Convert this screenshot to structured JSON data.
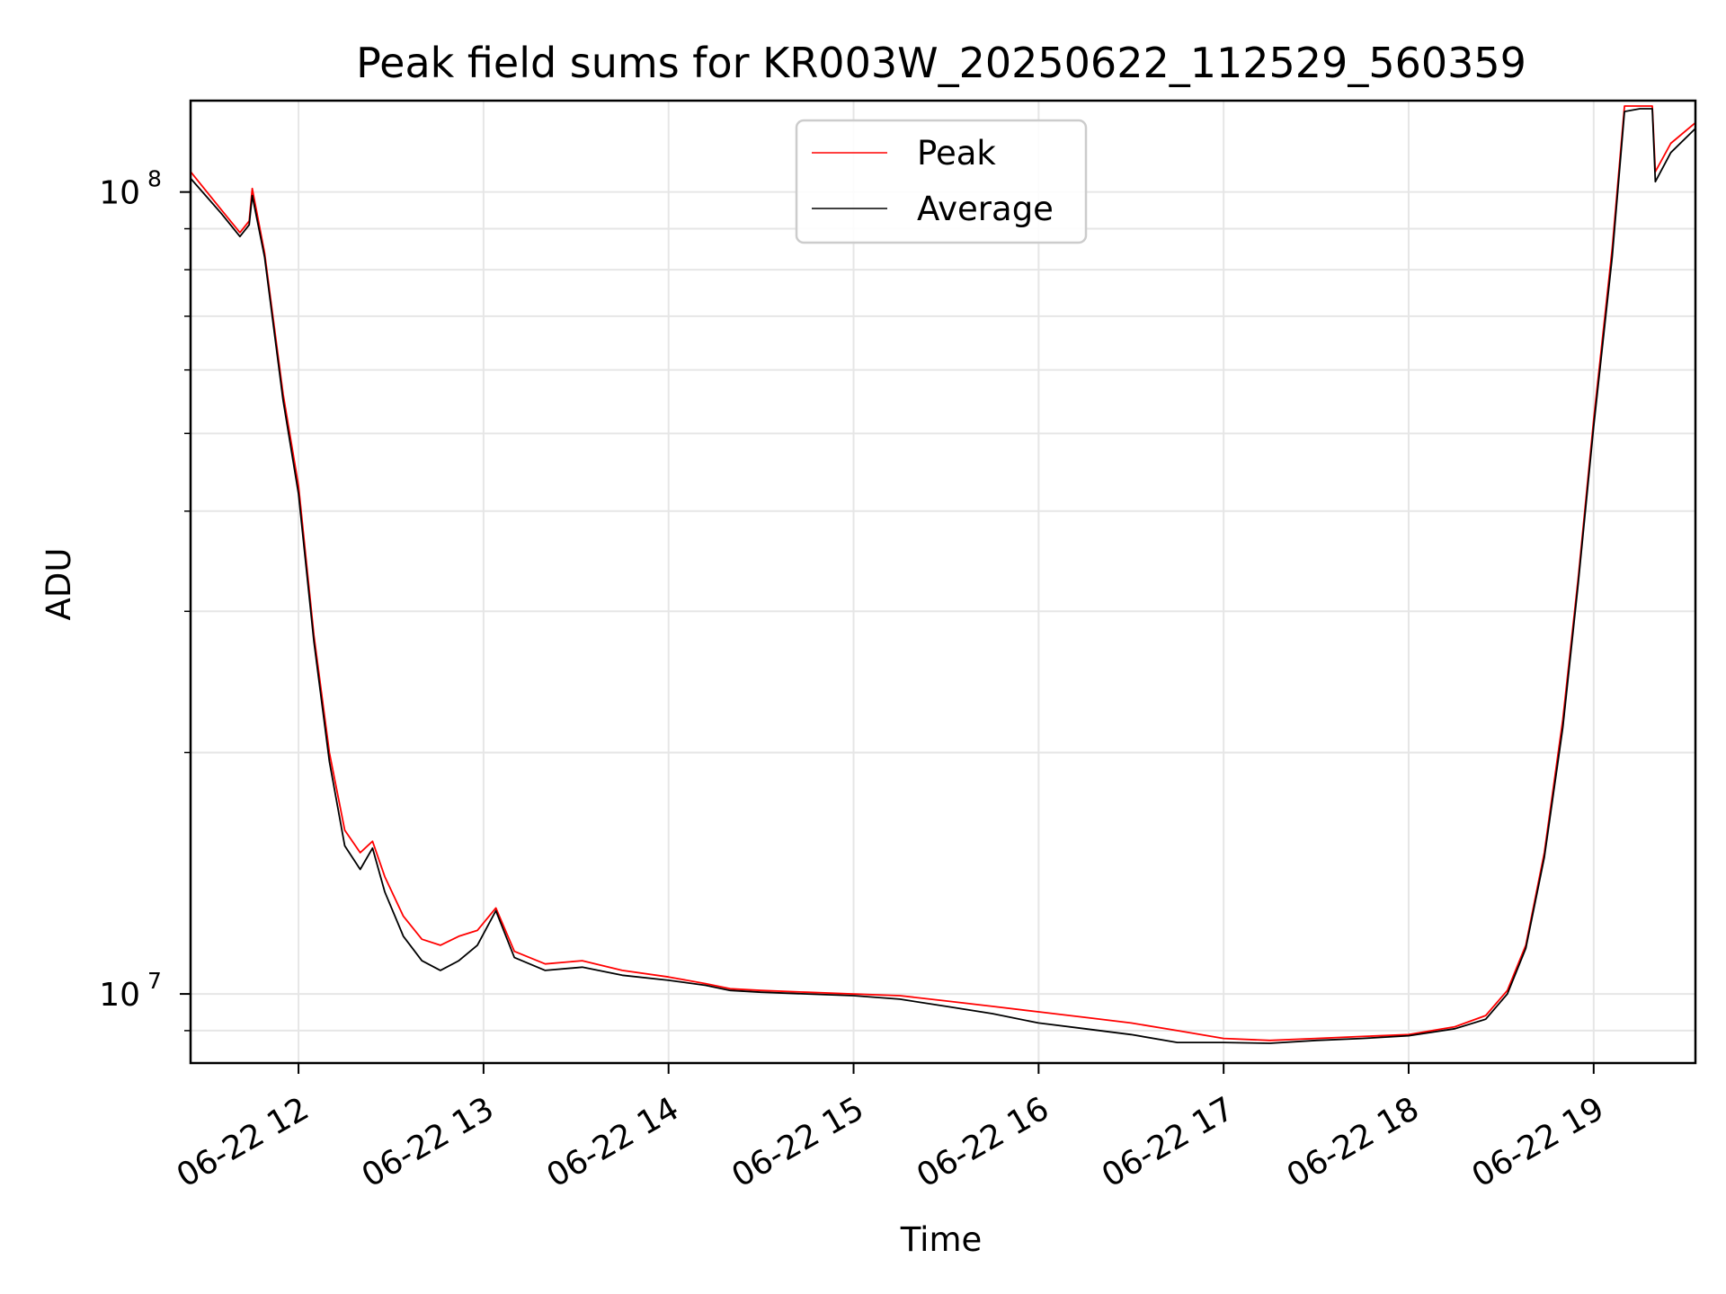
{
  "chart_data": {
    "type": "line",
    "title": "Peak field sums for KR003W_20250622_112529_560359",
    "xlabel": "Time",
    "ylabel": "ADU",
    "yscale": "log",
    "x_range": [
      "06-22 11:25",
      "06-22 19:33"
    ],
    "ylim": [
      8200000,
      130000000
    ],
    "x_ticks": [
      "06-22 12",
      "06-22 13",
      "06-22 14",
      "06-22 15",
      "06-22 16",
      "06-22 17",
      "06-22 18",
      "06-22 19"
    ],
    "y_ticks": [
      {
        "base": "10",
        "exp": "7",
        "value": 10000000
      },
      {
        "base": "10",
        "exp": "8",
        "value": 100000000
      }
    ],
    "grid": true,
    "legend_position": "upper center",
    "series": [
      {
        "name": "Peak",
        "color": "#ff0000",
        "x": [
          "06-22 11:25",
          "06-22 11:35",
          "06-22 11:41",
          "06-22 11:44",
          "06-22 11:45",
          "06-22 11:49",
          "06-22 11:55",
          "06-22 12:00",
          "06-22 12:05",
          "06-22 12:10",
          "06-22 12:15",
          "06-22 12:20",
          "06-22 12:24",
          "06-22 12:28",
          "06-22 12:34",
          "06-22 12:40",
          "06-22 12:46",
          "06-22 12:52",
          "06-22 12:58",
          "06-22 13:04",
          "06-22 13:10",
          "06-22 13:20",
          "06-22 13:32",
          "06-22 13:45",
          "06-22 14:00",
          "06-22 14:12",
          "06-22 14:20",
          "06-22 14:30",
          "06-22 14:45",
          "06-22 15:00",
          "06-22 15:15",
          "06-22 15:30",
          "06-22 15:45",
          "06-22 16:00",
          "06-22 16:15",
          "06-22 16:30",
          "06-22 16:45",
          "06-22 17:00",
          "06-22 17:15",
          "06-22 17:30",
          "06-22 17:45",
          "06-22 18:00",
          "06-22 18:15",
          "06-22 18:25",
          "06-22 18:32",
          "06-22 18:38",
          "06-22 18:44",
          "06-22 18:50",
          "06-22 18:55",
          "06-22 19:00",
          "06-22 19:06",
          "06-22 19:10",
          "06-22 19:15",
          "06-22 19:19",
          "06-22 19:20",
          "06-22 19:25",
          "06-22 19:33"
        ],
        "y": [
          106000000,
          95000000,
          89000000,
          92000000,
          101000000,
          84000000,
          56000000,
          43000000,
          28000000,
          20000000,
          16000000,
          15000000,
          15500000,
          14000000,
          12500000,
          11700000,
          11500000,
          11800000,
          12000000,
          12800000,
          11300000,
          10900000,
          11000000,
          10700000,
          10500000,
          10300000,
          10150000,
          10100000,
          10050000,
          10000000,
          9950000,
          9800000,
          9650000,
          9500000,
          9350000,
          9200000,
          9000000,
          8800000,
          8750000,
          8800000,
          8850000,
          8900000,
          9100000,
          9400000,
          10100000,
          11500000,
          15000000,
          22000000,
          33000000,
          52000000,
          85000000,
          128000000,
          128000000,
          128000000,
          106000000,
          115000000,
          122000000
        ]
      },
      {
        "name": "Average",
        "color": "#000000",
        "x": [
          "06-22 11:25",
          "06-22 11:35",
          "06-22 11:41",
          "06-22 11:44",
          "06-22 11:45",
          "06-22 11:49",
          "06-22 11:55",
          "06-22 12:00",
          "06-22 12:05",
          "06-22 12:10",
          "06-22 12:15",
          "06-22 12:20",
          "06-22 12:24",
          "06-22 12:28",
          "06-22 12:34",
          "06-22 12:40",
          "06-22 12:46",
          "06-22 12:52",
          "06-22 12:58",
          "06-22 13:04",
          "06-22 13:10",
          "06-22 13:20",
          "06-22 13:32",
          "06-22 13:45",
          "06-22 14:00",
          "06-22 14:12",
          "06-22 14:20",
          "06-22 14:30",
          "06-22 14:45",
          "06-22 15:00",
          "06-22 15:15",
          "06-22 15:30",
          "06-22 15:45",
          "06-22 16:00",
          "06-22 16:15",
          "06-22 16:30",
          "06-22 16:45",
          "06-22 17:00",
          "06-22 17:15",
          "06-22 17:30",
          "06-22 17:45",
          "06-22 18:00",
          "06-22 18:15",
          "06-22 18:25",
          "06-22 18:32",
          "06-22 18:38",
          "06-22 18:44",
          "06-22 18:50",
          "06-22 18:55",
          "06-22 19:00",
          "06-22 19:06",
          "06-22 19:10",
          "06-22 19:15",
          "06-22 19:19",
          "06-22 19:20",
          "06-22 19:25",
          "06-22 19:33"
        ],
        "y": [
          104000000,
          94000000,
          88000000,
          91000000,
          99000000,
          83000000,
          55000000,
          42000000,
          27500000,
          19500000,
          15300000,
          14300000,
          15200000,
          13400000,
          11800000,
          11000000,
          10700000,
          11000000,
          11500000,
          12700000,
          11100000,
          10700000,
          10800000,
          10550000,
          10400000,
          10250000,
          10100000,
          10050000,
          10000000,
          9950000,
          9850000,
          9650000,
          9450000,
          9200000,
          9050000,
          8900000,
          8700000,
          8700000,
          8680000,
          8750000,
          8800000,
          8870000,
          9050000,
          9300000,
          10000000,
          11400000,
          14800000,
          21500000,
          32500000,
          51000000,
          83000000,
          126000000,
          127000000,
          127000000,
          103000000,
          112000000,
          120000000
        ]
      }
    ]
  }
}
